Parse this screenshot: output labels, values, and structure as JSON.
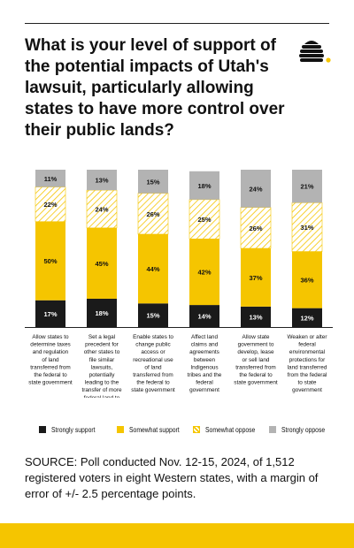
{
  "title": "What is your level of support of the potential impacts of Utah's lawsuit, particularly allowing states to have more control over their public lands?",
  "source": "SOURCE: Poll conducted Nov. 12-15, 2024, of 1,512 registered voters in eight Western states, with a margin of error of +/- 2.5 percentage points.",
  "colors": {
    "strongly_support": "#1a1a1a",
    "somewhat_support": "#f5c500",
    "somewhat_oppose": "#f5c500",
    "strongly_oppose": "#b3b3b3",
    "brand": "#f5c500"
  },
  "logo": {
    "icon": "beehive-icon"
  },
  "legend": {
    "strongly_support": "Strongly support",
    "somewhat_support": "Somewhat support",
    "somewhat_oppose": "Somewhat oppose",
    "strongly_oppose": "Strongly oppose"
  },
  "chart_data": {
    "type": "bar",
    "stacked": true,
    "orientation": "vertical",
    "categories": [
      "Allow states to determine taxes and regulation of land transferred from the federal to state government",
      "Set a legal precedent for other states to file similar lawsuits, potentially leading to the transfer of more federal land to state control",
      "Enable states to change public access or recreational use of land transferred from the federal to state government",
      "Affect land claims and agreements between Indigenous tribes and the federal government",
      "Allow state government to develop, lease or sell land transferred from the federal to state government",
      "Weaken or alter federal environmental protections for land transferred from the federal to state government"
    ],
    "series": [
      {
        "name": "Strongly support",
        "values": [
          17,
          18,
          15,
          14,
          13,
          12
        ]
      },
      {
        "name": "Somewhat support",
        "values": [
          50,
          45,
          44,
          42,
          37,
          36
        ]
      },
      {
        "name": "Somewhat oppose",
        "values": [
          22,
          24,
          26,
          25,
          26,
          31
        ]
      },
      {
        "name": "Strongly oppose",
        "values": [
          11,
          13,
          15,
          18,
          24,
          21
        ]
      }
    ],
    "data_labels": [
      [
        "17%",
        "18%",
        "15%",
        "14%",
        "13%",
        "12%"
      ],
      [
        "50%",
        "45%",
        "44%",
        "42%",
        "37%",
        "36%"
      ],
      [
        "22%",
        "24%",
        "26%",
        "25%",
        "26%",
        "31%"
      ],
      [
        "11%",
        "13%",
        "15%",
        "18%",
        "24%",
        "21%"
      ]
    ],
    "ylim": [
      0,
      100
    ],
    "grid": false,
    "legend_position": "bottom"
  }
}
